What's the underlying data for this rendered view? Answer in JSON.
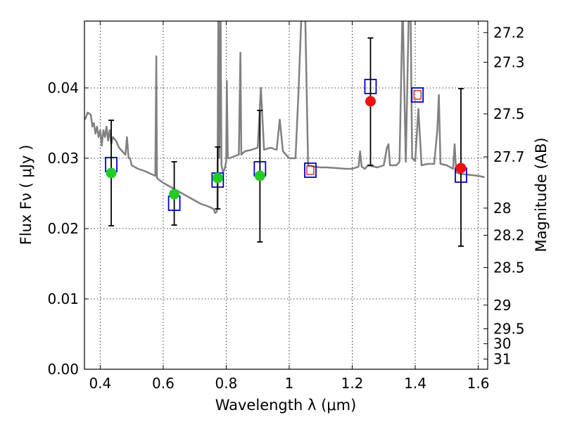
{
  "chart_data": {
    "type": "scatter",
    "xlabel": "Wavelength  λ (μm)",
    "ylabel": "Flux  Fν  ( μJy )",
    "y2label": "Magnitude (AB)",
    "xlim": [
      0.35,
      1.63
    ],
    "ylim": [
      0.0,
      0.0495
    ],
    "grid": true,
    "x_ticks": [
      0.4,
      0.6,
      0.8,
      1.0,
      1.2,
      1.4,
      1.6
    ],
    "x_tick_labels": [
      "0.4",
      "0.6",
      "0.8",
      "1",
      "1.2",
      "1.4",
      "1.6"
    ],
    "y_ticks": [
      0.0,
      0.01,
      0.02,
      0.03,
      0.04
    ],
    "y_tick_labels": [
      "0.00",
      "0.01",
      "0.02",
      "0.03",
      "0.04"
    ],
    "magnitude_ticks": [
      27.2,
      27.3,
      27.5,
      27.7,
      28,
      28.2,
      28.5,
      29,
      29.5,
      30,
      31
    ],
    "magnitude_tick_labels": [
      "27.2",
      "27.3",
      "27.5",
      "27.7",
      "28",
      "28.2",
      "28.5",
      "29",
      "29.5",
      "30",
      "31"
    ],
    "colors": {
      "spectrum": "#808080",
      "model_box": "#0000cc",
      "model_box_inner": "#cc0000",
      "optical_point": "#22cc22",
      "nir_point": "#ee1111",
      "error_bar": "#000000"
    },
    "spectrum": {
      "x": [
        0.352,
        0.36,
        0.37,
        0.375,
        0.38,
        0.385,
        0.39,
        0.395,
        0.4,
        0.405,
        0.41,
        0.415,
        0.42,
        0.425,
        0.43,
        0.435,
        0.44,
        0.45,
        0.46,
        0.47,
        0.48,
        0.485,
        0.49,
        0.495,
        0.5,
        0.52,
        0.54,
        0.56,
        0.575,
        0.578,
        0.58,
        0.585,
        0.6,
        0.62,
        0.64,
        0.66,
        0.68,
        0.7,
        0.72,
        0.74,
        0.75,
        0.76,
        0.765,
        0.77,
        0.772,
        0.775,
        0.778,
        0.782,
        0.785,
        0.79,
        0.795,
        0.8,
        0.802,
        0.805,
        0.81,
        0.82,
        0.84,
        0.845,
        0.848,
        0.852,
        0.86,
        0.88,
        0.9,
        0.91,
        0.92,
        0.94,
        0.96,
        0.97,
        0.98,
        0.99,
        1.0,
        1.02,
        1.03,
        1.04,
        1.05,
        1.06,
        1.08,
        1.1,
        1.12,
        1.15,
        1.18,
        1.2,
        1.22,
        1.225,
        1.23,
        1.24,
        1.25,
        1.28,
        1.3,
        1.31,
        1.315,
        1.32,
        1.34,
        1.35,
        1.36,
        1.37,
        1.38,
        1.385,
        1.39,
        1.4,
        1.41,
        1.42,
        1.44,
        1.46,
        1.47,
        1.475,
        1.48,
        1.5,
        1.52,
        1.525,
        1.53,
        1.54,
        1.56,
        1.58,
        1.6,
        1.62
      ],
      "y": [
        0.0355,
        0.0365,
        0.0362,
        0.0345,
        0.035,
        0.0335,
        0.0345,
        0.033,
        0.034,
        0.0318,
        0.034,
        0.033,
        0.0345,
        0.0325,
        0.034,
        0.032,
        0.033,
        0.0325,
        0.0315,
        0.031,
        0.0305,
        0.033,
        0.03,
        0.03,
        0.029,
        0.0285,
        0.0282,
        0.0278,
        0.0275,
        0.0445,
        0.0272,
        0.027,
        0.0265,
        0.026,
        0.0255,
        0.025,
        0.0245,
        0.024,
        0.0235,
        0.0232,
        0.023,
        0.0228,
        0.0222,
        0.0224,
        0.023,
        0.052,
        0.03,
        0.052,
        0.029,
        0.028,
        0.0285,
        0.0295,
        0.041,
        0.03,
        0.03,
        0.0302,
        0.0305,
        0.045,
        0.0305,
        0.0307,
        0.031,
        0.0312,
        0.0315,
        0.04,
        0.0312,
        0.0315,
        0.0312,
        0.0355,
        0.031,
        0.0305,
        0.03,
        0.03,
        0.04,
        0.052,
        0.052,
        0.029,
        0.0288,
        0.0287,
        0.0287,
        0.0286,
        0.0285,
        0.0285,
        0.0288,
        0.031,
        0.0288,
        0.0285,
        0.029,
        0.0287,
        0.029,
        0.0315,
        0.032,
        0.029,
        0.029,
        0.0295,
        0.052,
        0.0295,
        0.052,
        0.052,
        0.03,
        0.0296,
        0.037,
        0.029,
        0.0292,
        0.0292,
        0.034,
        0.039,
        0.0292,
        0.029,
        0.0285,
        0.032,
        0.028,
        0.0278,
        0.0277,
        0.0276,
        0.0275,
        0.0273
      ]
    },
    "model_boxes": [
      {
        "x": 0.435,
        "y": 0.0291,
        "inner": false
      },
      {
        "x": 0.635,
        "y": 0.0236,
        "inner": false
      },
      {
        "x": 0.773,
        "y": 0.0269,
        "inner": false
      },
      {
        "x": 0.907,
        "y": 0.0285,
        "inner": false
      },
      {
        "x": 1.067,
        "y": 0.0283,
        "inner": true
      },
      {
        "x": 1.258,
        "y": 0.0402,
        "inner": false
      },
      {
        "x": 1.407,
        "y": 0.039,
        "inner": true
      },
      {
        "x": 1.545,
        "y": 0.0276,
        "inner": false
      }
    ],
    "measurements": [
      {
        "x": 0.435,
        "y": 0.0279,
        "err_low": 0.0204,
        "err_high": 0.0354,
        "band": "optical"
      },
      {
        "x": 0.635,
        "y": 0.0249,
        "err_low": 0.0205,
        "err_high": 0.0295,
        "band": "optical"
      },
      {
        "x": 0.773,
        "y": 0.0272,
        "err_low": 0.0228,
        "err_high": 0.0316,
        "band": "optical"
      },
      {
        "x": 0.907,
        "y": 0.0275,
        "err_low": 0.0181,
        "err_high": 0.0368,
        "band": "optical"
      },
      {
        "x": 1.258,
        "y": 0.0381,
        "err_low": 0.029,
        "err_high": 0.0471,
        "band": "nir"
      },
      {
        "x": 1.545,
        "y": 0.0286,
        "err_low": 0.0175,
        "err_high": 0.0399,
        "band": "nir"
      }
    ]
  }
}
